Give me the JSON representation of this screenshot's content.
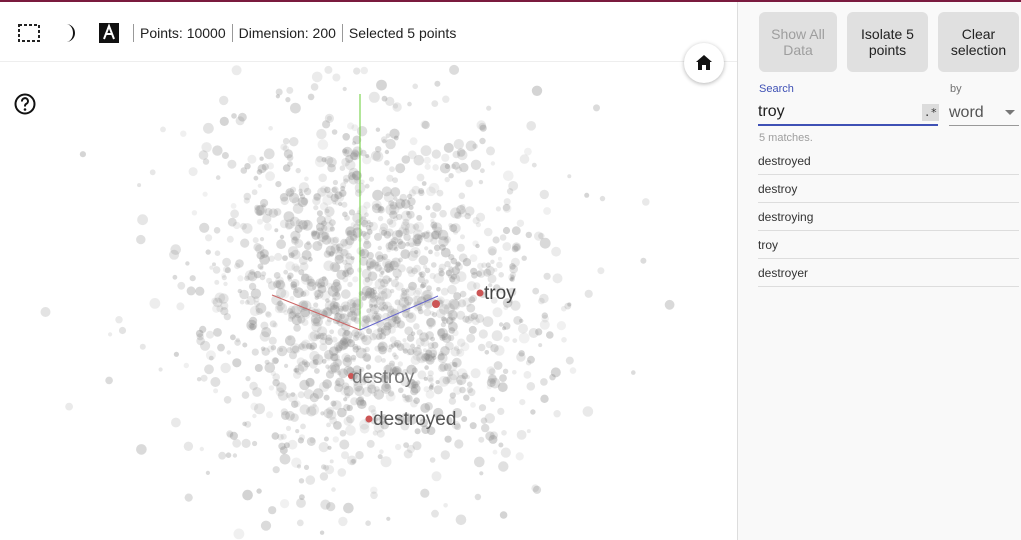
{
  "toolbar": {
    "stats": [
      "Points: 10000",
      "Dimension: 200",
      "Selected 5 points"
    ]
  },
  "plot": {
    "axis_colors": {
      "x": "#cc6666",
      "y": "#66cc33",
      "z": "#6666cc"
    },
    "labels": [
      {
        "text": "troy"
      },
      {
        "text": "destroy"
      },
      {
        "text": "destroyed"
      }
    ]
  },
  "panel": {
    "show_all_label": "Show All Data",
    "isolate_label": "Isolate 5 points",
    "clear_label": "Clear selection",
    "search_label": "Search",
    "search_value": "troy",
    "regex_label": ".*",
    "by_label": "by",
    "by_value": "word",
    "matches_text": "5 matches.",
    "results": [
      "destroyed",
      "destroy",
      "destroying",
      "troy",
      "destroyer"
    ]
  }
}
